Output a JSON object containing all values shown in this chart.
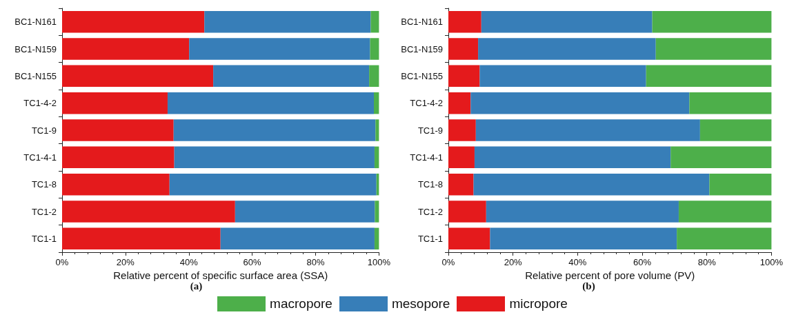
{
  "chart_data": [
    {
      "type": "bar",
      "orientation": "horizontal",
      "stacked": true,
      "xlabel": "Relative percent of specific surface area (SSA)",
      "annotations": [
        "(a)"
      ],
      "legend": "bottom",
      "categories": [
        "BC1-N161",
        "BC1-N159",
        "BC1-N155",
        "TC1-4-2",
        "TC1-9",
        "TC1-4-1",
        "TC1-8",
        "TC1-2",
        "TC1-1"
      ],
      "xlim": [
        0,
        100
      ],
      "xticks": [
        {
          "value": 0,
          "label": "0%"
        },
        {
          "value": 20,
          "label": "20%"
        },
        {
          "value": 40,
          "label": "40%"
        },
        {
          "value": 60,
          "label": "60%"
        },
        {
          "value": 80,
          "label": "80%"
        },
        {
          "value": 100,
          "label": "100%"
        }
      ],
      "grid": false,
      "series": [
        {
          "name": "micropore",
          "color": "#e41a1c",
          "values": [
            44.9,
            40.1,
            47.7,
            33.3,
            35.2,
            35.4,
            33.9,
            54.6,
            50.0
          ]
        },
        {
          "name": "mesopore",
          "color": "#377eb8",
          "values": [
            52.5,
            57.1,
            49.2,
            65.1,
            63.7,
            63.2,
            65.3,
            44.1,
            48.6
          ]
        },
        {
          "name": "macropore",
          "color": "#4daf4a",
          "values": [
            2.6,
            2.8,
            3.1,
            1.6,
            1.1,
            1.4,
            0.8,
            1.3,
            1.4
          ]
        }
      ]
    },
    {
      "type": "bar",
      "orientation": "horizontal",
      "stacked": true,
      "xlabel": "Relative percent of pore volume (PV)",
      "annotations": [
        "(b)"
      ],
      "legend": "bottom",
      "categories": [
        "BC1-N161",
        "BC1-N159",
        "BC1-N155",
        "TC1-4-2",
        "TC1-9",
        "TC1-4-1",
        "TC1-8",
        "TC1-2",
        "TC1-1"
      ],
      "xlim": [
        0,
        100
      ],
      "xticks": [
        {
          "value": 0,
          "label": "0%"
        },
        {
          "value": 20,
          "label": "20%"
        },
        {
          "value": 40,
          "label": "40%"
        },
        {
          "value": 60,
          "label": "60%"
        },
        {
          "value": 80,
          "label": "80%"
        },
        {
          "value": 100,
          "label": "100%"
        }
      ],
      "grid": false,
      "series": [
        {
          "name": "micropore",
          "color": "#e41a1c",
          "values": [
            10.2,
            9.2,
            9.7,
            6.9,
            8.5,
            8.1,
            7.8,
            11.7,
            12.9
          ]
        },
        {
          "name": "mesopore",
          "color": "#377eb8",
          "values": [
            52.9,
            55.0,
            51.5,
            67.7,
            69.4,
            60.7,
            73.0,
            59.6,
            57.8
          ]
        },
        {
          "name": "macropore",
          "color": "#4daf4a",
          "values": [
            36.9,
            35.8,
            38.8,
            25.4,
            22.1,
            31.2,
            19.2,
            28.7,
            29.3
          ]
        }
      ]
    }
  ]
}
